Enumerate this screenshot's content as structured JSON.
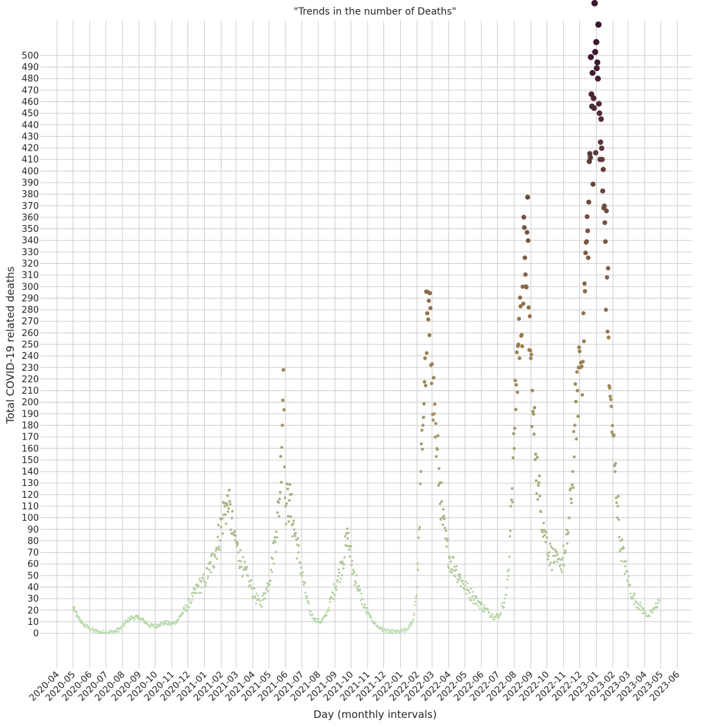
{
  "chart_data": {
    "type": "scatter",
    "title": "\"Trends in the number of Deaths\"",
    "xlabel": "Day (monthly intervals)",
    "ylabel": "Total COVID-19 related deaths",
    "grid": true,
    "x_ticks": [
      "2020-04",
      "2020-05",
      "2020-06",
      "2020-07",
      "2020-08",
      "2020-09",
      "2020-10",
      "2020-11",
      "2020-12",
      "2021-01",
      "2021-02",
      "2021-03",
      "2021-04",
      "2021-05",
      "2021-06",
      "2021-07",
      "2021-08",
      "2021-09",
      "2021-10",
      "2021-11",
      "2021-12",
      "2022-01",
      "2022-02",
      "2022-03",
      "2022-04",
      "2022-05",
      "2022-06",
      "2022-07",
      "2022-08",
      "2022-09",
      "2022-10",
      "2022-11",
      "2022-12",
      "2023-01",
      "2023-02",
      "2023-03",
      "2023-04",
      "2023-05",
      "2023-06"
    ],
    "y_ticks": [
      0,
      10,
      20,
      30,
      40,
      50,
      60,
      70,
      80,
      90,
      100,
      110,
      120,
      130,
      140,
      150,
      160,
      170,
      180,
      190,
      200,
      210,
      220,
      230,
      240,
      250,
      260,
      270,
      280,
      290,
      300,
      310,
      320,
      330,
      340,
      350,
      360,
      370,
      380,
      390,
      400,
      410,
      420,
      430,
      440,
      450,
      460,
      470,
      480,
      490,
      500
    ],
    "xlim": [
      "2020-03-01",
      "2023-06-28"
    ],
    "ylim": [
      -30,
      530
    ],
    "color_scale": {
      "low": "#b7dcae",
      "mid": "#9a7c4e",
      "high": "#3d1630"
    },
    "series": [
      {
        "points": [
          [
            "2020-05-01",
            22
          ],
          [
            "2020-05-10",
            14
          ],
          [
            "2020-05-20",
            8
          ],
          [
            "2020-06-01",
            4
          ],
          [
            "2020-06-10",
            2
          ],
          [
            "2020-06-20",
            1
          ],
          [
            "2020-07-01",
            1
          ],
          [
            "2020-07-10",
            1
          ],
          [
            "2020-07-20",
            2
          ],
          [
            "2020-08-01",
            5
          ],
          [
            "2020-08-10",
            11
          ],
          [
            "2020-08-20",
            14
          ],
          [
            "2020-09-01",
            13
          ],
          [
            "2020-09-10",
            11
          ],
          [
            "2020-09-20",
            7
          ],
          [
            "2020-10-01",
            6
          ],
          [
            "2020-10-10",
            8
          ],
          [
            "2020-10-20",
            9
          ],
          [
            "2020-11-01",
            8
          ],
          [
            "2020-11-10",
            10
          ],
          [
            "2020-11-20",
            17
          ],
          [
            "2020-12-01",
            24
          ],
          [
            "2020-12-10",
            32
          ],
          [
            "2020-12-20",
            40
          ],
          [
            "2021-01-01",
            45
          ],
          [
            "2021-01-10",
            55
          ],
          [
            "2021-01-20",
            68
          ],
          [
            "2021-02-01",
            92
          ],
          [
            "2021-02-08",
            110
          ],
          [
            "2021-02-15",
            108
          ],
          [
            "2021-02-25",
            85
          ],
          [
            "2021-03-05",
            70
          ],
          [
            "2021-03-15",
            55
          ],
          [
            "2021-03-25",
            45
          ],
          [
            "2021-04-05",
            32
          ],
          [
            "2021-04-15",
            25
          ],
          [
            "2021-04-25",
            35
          ],
          [
            "2021-05-05",
            55
          ],
          [
            "2021-05-15",
            88
          ],
          [
            "2021-05-22",
            122
          ],
          [
            "2021-05-28",
            228
          ],
          [
            "2021-06-01",
            110
          ],
          [
            "2021-06-08",
            115
          ],
          [
            "2021-06-15",
            95
          ],
          [
            "2021-06-25",
            70
          ],
          [
            "2021-07-05",
            42
          ],
          [
            "2021-07-15",
            20
          ],
          [
            "2021-07-25",
            12
          ],
          [
            "2021-08-05",
            10
          ],
          [
            "2021-08-15",
            15
          ],
          [
            "2021-08-25",
            30
          ],
          [
            "2021-09-05",
            45
          ],
          [
            "2021-09-15",
            62
          ],
          [
            "2021-09-25",
            82
          ],
          [
            "2021-10-05",
            55
          ],
          [
            "2021-10-15",
            38
          ],
          [
            "2021-10-25",
            24
          ],
          [
            "2021-11-05",
            14
          ],
          [
            "2021-11-15",
            8
          ],
          [
            "2021-11-25",
            4
          ],
          [
            "2021-12-05",
            2
          ],
          [
            "2021-12-15",
            1
          ],
          [
            "2021-12-25",
            1
          ],
          [
            "2022-01-05",
            2
          ],
          [
            "2022-01-15",
            3
          ],
          [
            "2022-01-25",
            12
          ],
          [
            "2022-02-01",
            40
          ],
          [
            "2022-02-05",
            90
          ],
          [
            "2022-02-08",
            140
          ],
          [
            "2022-02-12",
            180
          ],
          [
            "2022-02-16",
            238
          ],
          [
            "2022-02-20",
            277
          ],
          [
            "2022-02-24",
            258
          ],
          [
            "2022-03-01",
            233
          ],
          [
            "2022-03-05",
            190
          ],
          [
            "2022-03-10",
            160
          ],
          [
            "2022-03-15",
            130
          ],
          [
            "2022-03-20",
            100
          ],
          [
            "2022-03-28",
            75
          ],
          [
            "2022-04-05",
            62
          ],
          [
            "2022-04-15",
            55
          ],
          [
            "2022-04-25",
            45
          ],
          [
            "2022-05-05",
            38
          ],
          [
            "2022-05-15",
            32
          ],
          [
            "2022-05-25",
            28
          ],
          [
            "2022-06-05",
            22
          ],
          [
            "2022-06-15",
            18
          ],
          [
            "2022-06-25",
            14
          ],
          [
            "2022-07-05",
            16
          ],
          [
            "2022-07-15",
            30
          ],
          [
            "2022-07-22",
            55
          ],
          [
            "2022-07-26",
            110
          ],
          [
            "2022-08-01",
            160
          ],
          [
            "2022-08-05",
            215
          ],
          [
            "2022-08-09",
            250
          ],
          [
            "2022-08-13",
            283
          ],
          [
            "2022-08-17",
            300
          ],
          [
            "2022-08-21",
            325
          ],
          [
            "2022-08-25",
            347
          ],
          [
            "2022-08-28",
            282
          ],
          [
            "2022-09-01",
            238
          ],
          [
            "2022-09-05",
            192
          ],
          [
            "2022-09-10",
            155
          ],
          [
            "2022-09-15",
            128
          ],
          [
            "2022-09-20",
            105
          ],
          [
            "2022-09-28",
            88
          ],
          [
            "2022-10-05",
            70
          ],
          [
            "2022-10-15",
            62
          ],
          [
            "2022-10-25",
            58
          ],
          [
            "2022-11-05",
            70
          ],
          [
            "2022-11-12",
            100
          ],
          [
            "2022-11-18",
            140
          ],
          [
            "2022-11-22",
            180
          ],
          [
            "2022-11-27",
            210
          ],
          [
            "2022-12-01",
            244
          ],
          [
            "2022-12-05",
            231
          ],
          [
            "2022-12-08",
            277
          ],
          [
            "2022-12-11",
            296
          ],
          [
            "2022-12-14",
            339
          ],
          [
            "2022-12-17",
            325
          ],
          [
            "2022-12-20",
            415
          ],
          [
            "2022-12-24",
            456
          ],
          [
            "2022-12-27",
            463
          ],
          [
            "2022-12-30",
            503
          ],
          [
            "2023-01-02",
            489
          ],
          [
            "2023-01-04",
            480
          ],
          [
            "2023-01-07",
            450
          ],
          [
            "2023-01-09",
            425
          ],
          [
            "2023-01-12",
            410
          ],
          [
            "2023-01-15",
            368
          ],
          [
            "2023-01-18",
            339
          ],
          [
            "2023-01-21",
            308
          ],
          [
            "2023-01-24",
            256
          ],
          [
            "2023-01-27",
            205
          ],
          [
            "2023-02-01",
            172
          ],
          [
            "2023-02-05",
            140
          ],
          [
            "2023-02-10",
            110
          ],
          [
            "2023-02-15",
            80
          ],
          [
            "2023-02-22",
            62
          ],
          [
            "2023-03-01",
            45
          ],
          [
            "2023-03-10",
            32
          ],
          [
            "2023-03-20",
            25
          ],
          [
            "2023-04-01",
            18
          ],
          [
            "2023-04-10",
            15
          ],
          [
            "2023-04-20",
            22
          ],
          [
            "2023-04-28",
            28
          ]
        ]
      }
    ]
  }
}
